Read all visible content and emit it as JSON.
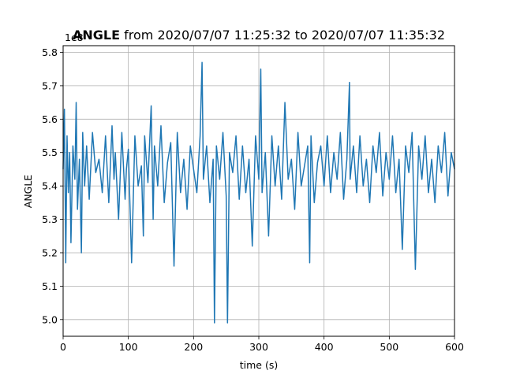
{
  "chart_data": {
    "type": "line",
    "title_bold": "ANGLE",
    "title_rest": " from 2020/07/07 11:25:32 to 2020/07/07 11:35:32",
    "xlabel": "time (s)",
    "ylabel": "ANGLE",
    "offset_text": "1e8",
    "xlim": [
      0,
      600
    ],
    "ylim": [
      4.95,
      5.82
    ],
    "x_ticks": [
      0,
      100,
      200,
      300,
      400,
      500,
      600
    ],
    "x_tick_labels": [
      "0",
      "100",
      "200",
      "300",
      "400",
      "500",
      "600"
    ],
    "y_ticks": [
      5.0,
      5.1,
      5.2,
      5.3,
      5.4,
      5.5,
      5.6,
      5.7,
      5.8
    ],
    "y_tick_labels": [
      "5.0",
      "5.1",
      "5.2",
      "5.3",
      "5.4",
      "5.5",
      "5.6",
      "5.7",
      "5.8"
    ],
    "grid": true,
    "color": "#1f77b4",
    "series": [
      {
        "x": [
          0,
          2,
          4,
          6,
          8,
          10,
          12,
          15,
          18,
          20,
          22,
          25,
          28,
          30,
          33,
          36,
          40,
          45,
          50,
          55,
          60,
          65,
          70,
          75,
          78,
          80,
          85,
          90,
          95,
          97,
          100,
          105,
          110,
          115,
          120,
          123,
          125,
          130,
          135,
          138,
          140,
          145,
          150,
          155,
          160,
          165,
          170,
          175,
          180,
          185,
          190,
          195,
          200,
          205,
          210,
          213,
          215,
          220,
          225,
          230,
          232,
          235,
          240,
          245,
          250,
          252,
          255,
          260,
          265,
          270,
          275,
          280,
          285,
          290,
          295,
          300,
          303,
          305,
          310,
          315,
          320,
          325,
          330,
          335,
          340,
          345,
          350,
          355,
          360,
          365,
          370,
          375,
          378,
          380,
          385,
          390,
          395,
          400,
          405,
          410,
          415,
          420,
          425,
          430,
          435,
          439,
          440,
          445,
          450,
          455,
          460,
          465,
          470,
          475,
          480,
          485,
          490,
          495,
          500,
          505,
          510,
          515,
          520,
          525,
          530,
          535,
          540,
          545,
          550,
          555,
          560,
          565,
          570,
          575,
          580,
          585,
          590,
          595,
          600
        ],
        "y": [
          5.45,
          5.63,
          5.17,
          5.55,
          5.38,
          5.5,
          5.23,
          5.52,
          5.42,
          5.65,
          5.33,
          5.48,
          5.2,
          5.56,
          5.4,
          5.52,
          5.36,
          5.56,
          5.44,
          5.48,
          5.38,
          5.55,
          5.35,
          5.58,
          5.42,
          5.5,
          5.3,
          5.56,
          5.36,
          5.45,
          5.51,
          5.17,
          5.55,
          5.4,
          5.46,
          5.25,
          5.55,
          5.41,
          5.64,
          5.3,
          5.52,
          5.4,
          5.58,
          5.35,
          5.47,
          5.53,
          5.16,
          5.56,
          5.38,
          5.48,
          5.33,
          5.52,
          5.45,
          5.38,
          5.55,
          5.77,
          5.42,
          5.52,
          5.35,
          5.48,
          4.99,
          5.52,
          5.42,
          5.56,
          5.37,
          4.99,
          5.5,
          5.44,
          5.55,
          5.36,
          5.52,
          5.38,
          5.48,
          5.22,
          5.55,
          5.42,
          5.75,
          5.38,
          5.5,
          5.25,
          5.55,
          5.4,
          5.52,
          5.36,
          5.65,
          5.42,
          5.48,
          5.33,
          5.56,
          5.4,
          5.46,
          5.52,
          5.17,
          5.55,
          5.35,
          5.47,
          5.52,
          5.4,
          5.55,
          5.38,
          5.5,
          5.42,
          5.56,
          5.36,
          5.48,
          5.71,
          5.42,
          5.52,
          5.38,
          5.55,
          5.4,
          5.48,
          5.35,
          5.52,
          5.44,
          5.56,
          5.37,
          5.5,
          5.42,
          5.55,
          5.38,
          5.48,
          5.21,
          5.52,
          5.44,
          5.56,
          5.15,
          5.52,
          5.42,
          5.55,
          5.38,
          5.48,
          5.35,
          5.52,
          5.44,
          5.56,
          5.37,
          5.5,
          5.45
        ]
      }
    ]
  }
}
